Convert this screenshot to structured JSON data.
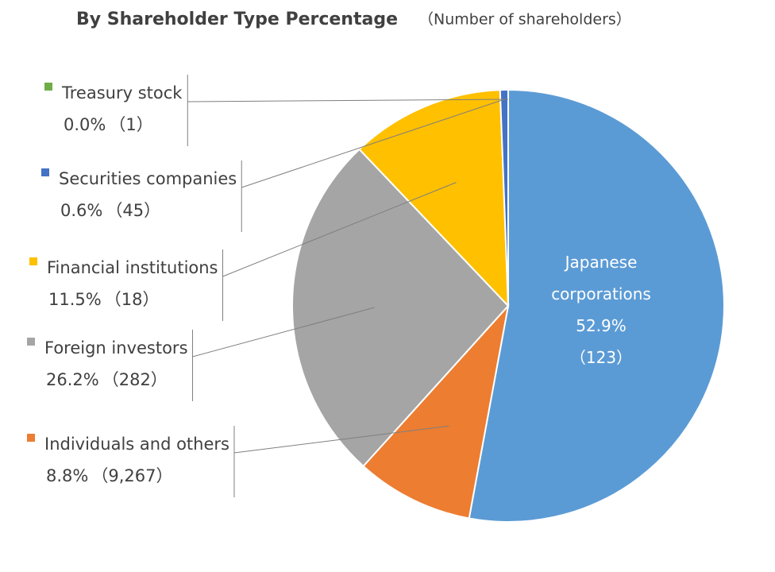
{
  "chart_data": {
    "type": "pie",
    "title": "By Shareholder Type Percentage",
    "subtitle": "（Number of shareholders）",
    "categories": [
      "Japanese corporations",
      "Individuals and others",
      "Foreign investors",
      "Financial institutions",
      "Securities companies",
      "Treasury stock"
    ],
    "values": [
      52.9,
      8.8,
      26.2,
      11.5,
      0.6,
      0.0
    ],
    "value_labels": [
      "52.9%",
      "8.8%",
      "26.2%",
      "11.5%",
      "0.6%",
      "0.0%"
    ],
    "counts": [
      123,
      9267,
      282,
      18,
      45,
      1
    ],
    "count_labels": [
      "（123）",
      "（9,267）",
      "（282）",
      "（18）",
      "（45）",
      "（1）"
    ],
    "colors": [
      "#5b9bd5",
      "#ed7d31",
      "#a5a5a5",
      "#ffc000",
      "#4472c4",
      "#70ad47"
    ]
  }
}
